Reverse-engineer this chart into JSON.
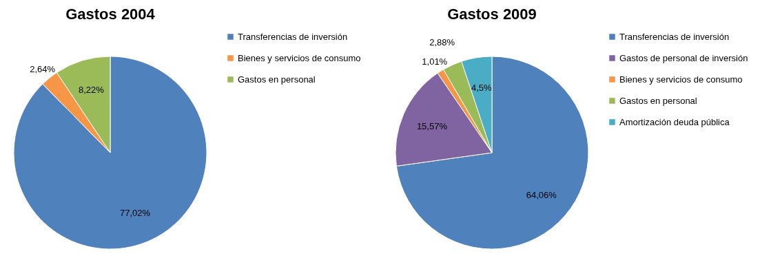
{
  "chart_data": [
    {
      "type": "pie",
      "title": "Gastos 2004",
      "categories": [
        "Transferencias de inversión",
        "Bienes y servicios de consumo",
        "Gastos en personal"
      ],
      "values": [
        77.02,
        2.64,
        8.22
      ],
      "value_labels": [
        "77,02%",
        "2,64%",
        "8,22%"
      ],
      "colors": [
        "#4f81bd",
        "#f79646",
        "#9bbb59"
      ],
      "legend": "right"
    },
    {
      "type": "pie",
      "title": "Gastos 2009",
      "categories": [
        "Transferencias de inversión",
        "Gastos de personal de inversión",
        "Bienes y servicios de consumo",
        "Gastos en personal",
        "Amortización deuda pública"
      ],
      "values": [
        64.06,
        15.57,
        1.01,
        2.88,
        4.5
      ],
      "value_labels": [
        "64,06%",
        "15,57%",
        "1,01%",
        "2,88%",
        "4,5%"
      ],
      "colors": [
        "#4f81bd",
        "#8064a2",
        "#f79646",
        "#9bbb59",
        "#4bacc6"
      ],
      "legend": "right"
    }
  ]
}
